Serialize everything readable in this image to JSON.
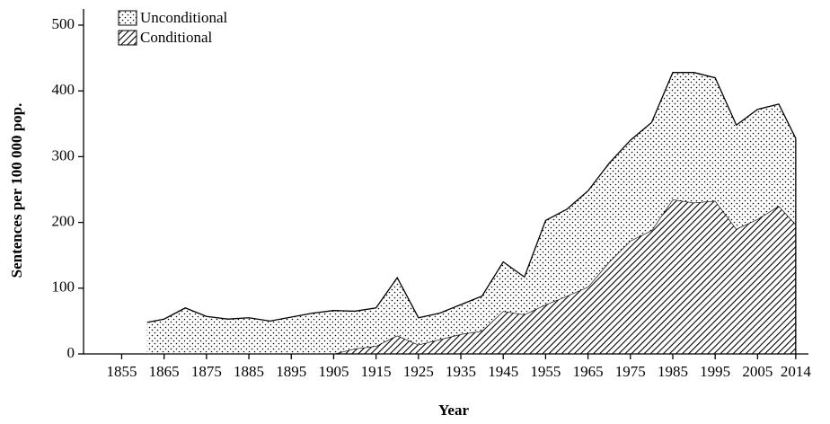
{
  "chart_data": {
    "type": "stacked_area",
    "x_label": "Year",
    "y_label": "Sentences per 100 000 pop.",
    "x": [
      1861,
      1865,
      1870,
      1875,
      1880,
      1885,
      1890,
      1895,
      1900,
      1905,
      1910,
      1915,
      1920,
      1925,
      1930,
      1935,
      1940,
      1945,
      1950,
      1955,
      1960,
      1965,
      1970,
      1975,
      1980,
      1985,
      1990,
      1995,
      2000,
      2005,
      2010,
      2014
    ],
    "series": [
      {
        "name": "Unconditional",
        "pattern": "dots",
        "color": "#000000",
        "values": [
          48,
          53,
          70,
          57,
          53,
          55,
          50,
          56,
          62,
          66,
          57,
          58,
          88,
          41,
          40,
          45,
          53,
          75,
          57,
          128,
          132,
          146,
          150,
          153,
          164,
          193,
          198,
          187,
          158,
          167,
          155,
          131
        ]
      },
      {
        "name": "Conditional",
        "pattern": "hatch",
        "color": "#000000",
        "values": [
          null,
          null,
          null,
          null,
          null,
          null,
          null,
          null,
          null,
          0,
          8,
          12,
          28,
          14,
          22,
          30,
          35,
          65,
          60,
          75,
          88,
          102,
          140,
          172,
          188,
          235,
          230,
          233,
          190,
          205,
          225,
          197
        ]
      }
    ],
    "xlim": [
      1846,
      2017
    ],
    "xticks": [
      1855,
      1865,
      1875,
      1885,
      1895,
      1905,
      1915,
      1925,
      1935,
      1945,
      1955,
      1965,
      1975,
      1985,
      1995,
      2005,
      2014
    ],
    "ylim": [
      0,
      500
    ],
    "yticks": [
      0,
      100,
      200,
      300,
      400,
      500
    ],
    "legend": "top-left"
  }
}
